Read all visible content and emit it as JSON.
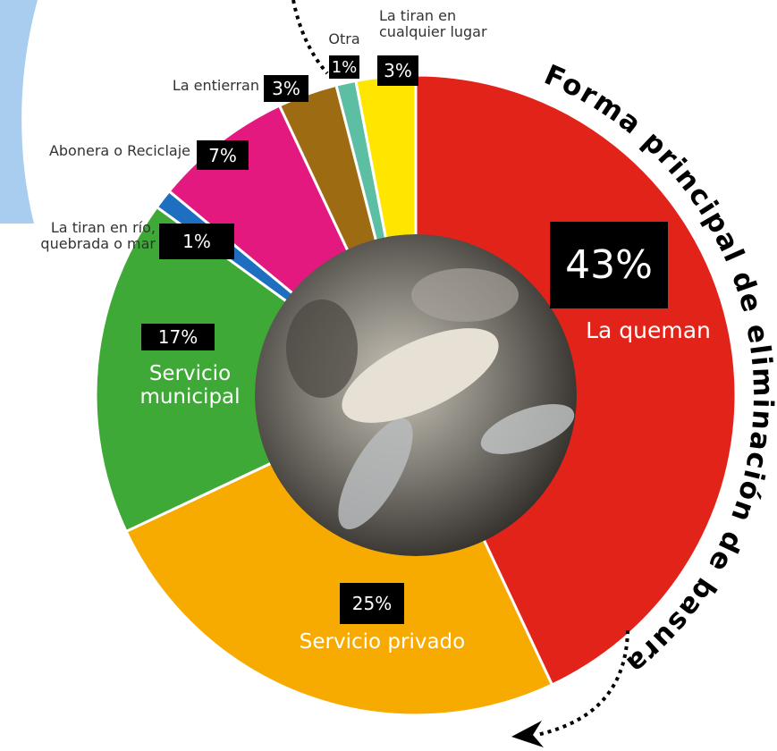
{
  "chart_data": {
    "type": "donut",
    "title": "Forma principal de eliminación de basura",
    "categories": [
      "La queman",
      "Servicio privado",
      "Servicio municipal",
      "La tiran en río, quebrada o mar",
      "Abonera o Reciclaje",
      "La entierran",
      "Otra",
      "La tiran en cualquier lugar"
    ],
    "values": [
      43,
      25,
      17,
      1,
      7,
      3,
      1,
      3
    ],
    "value_labels": [
      "43%",
      "25%",
      "17%",
      "1%",
      "7%",
      "3%",
      "1%",
      "3%"
    ],
    "colors": [
      "#e2231a",
      "#f7ab00",
      "#3ea936",
      "#1f6fc0",
      "#e3197f",
      "#9d6b12",
      "#5cbfa4",
      "#ffe600"
    ]
  }
}
